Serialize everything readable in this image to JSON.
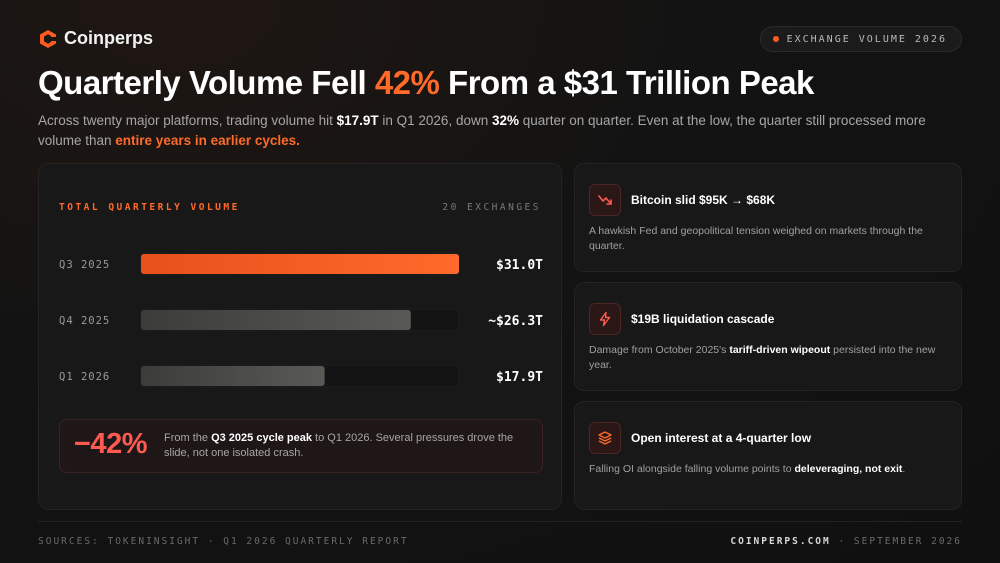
{
  "brand": {
    "name": "Coinperps"
  },
  "tag": {
    "label": "EXCHANGE VOLUME 2026"
  },
  "headline": {
    "before": "Quarterly Volume Fell ",
    "highlight": "42%",
    "after": " From a $31 Trillion Peak"
  },
  "subtext": {
    "p1": "Across twenty major platforms, trading volume hit ",
    "b1": "$17.9T",
    "p2": " in Q1 2026, down ",
    "b2": "32%",
    "p3": " quarter on quarter. Even at the low, the quarter still processed more volume than ",
    "accent": "entire years in earlier cycles."
  },
  "chart_data": {
    "type": "bar",
    "orientation": "horizontal",
    "title": "TOTAL QUARTERLY VOLUME",
    "subtitle": "20 EXCHANGES",
    "categories": [
      "Q3 2025",
      "Q4 2025",
      "Q1 2026"
    ],
    "values": [
      31.0,
      26.3,
      17.9
    ],
    "value_labels": [
      "$31.0T",
      "~$26.3T",
      "$17.9T"
    ],
    "xlim": [
      0,
      31.0
    ],
    "colors": [
      "#ff5a1f",
      "#4a4a46",
      "#4a4a46"
    ]
  },
  "callout": {
    "big": "−42%",
    "p1": "From the ",
    "b1": "Q3 2025 cycle peak",
    "p2": " to Q1 2026. Several pressures drove the slide, not one isolated crash."
  },
  "cards": [
    {
      "icon": "trending-down-icon",
      "title": "Bitcoin slid $95K → $68K",
      "body_p1": "A hawkish Fed and geopolitical tension weighed on markets through the quarter.",
      "body_b": "",
      "body_p2": ""
    },
    {
      "icon": "lightning-icon",
      "title": "$19B liquidation cascade",
      "body_p1": "Damage from October 2025's ",
      "body_b": "tariff-driven wipeout",
      "body_p2": " persisted into the new year."
    },
    {
      "icon": "layers-icon",
      "title": "Open interest at a 4-quarter low",
      "body_p1": "Falling OI alongside falling volume points to ",
      "body_b": "deleveraging, not exit",
      "body_p2": "."
    }
  ],
  "footer": {
    "sources": "SOURCES: TOKENINSIGHT · Q1 2026 QUARTERLY REPORT",
    "site": "COINPERPS.COM",
    "separator": " · ",
    "date": "SEPTEMBER 2026"
  }
}
